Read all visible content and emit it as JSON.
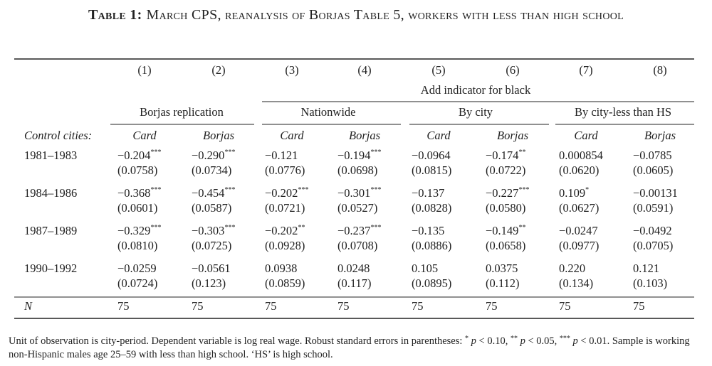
{
  "title": {
    "label": "Table 1:",
    "text": "March CPS, reanalysis of Borjas Table 5, workers with less than high school"
  },
  "table": {
    "column_numbers": [
      "(1)",
      "(2)",
      "(3)",
      "(4)",
      "(5)",
      "(6)",
      "(7)",
      "(8)"
    ],
    "spanner": "Add indicator for black",
    "groups": [
      "Borjas replication",
      "Nationwide",
      "By city",
      "By city-less than HS"
    ],
    "row_label_header": "Control cities:",
    "subheaders": [
      "Card",
      "Borjas",
      "Card",
      "Borjas",
      "Card",
      "Borjas",
      "Card",
      "Borjas"
    ],
    "rows": [
      {
        "label": "1981–1983",
        "cells": [
          {
            "coef": "−0.204",
            "stars": "***"
          },
          {
            "coef": "−0.290",
            "stars": "***"
          },
          {
            "coef": "−0.121"
          },
          {
            "coef": "−0.194",
            "stars": "***"
          },
          {
            "coef": "−0.0964"
          },
          {
            "coef": "−0.174",
            "stars": "**"
          },
          {
            "coef": "0.000854"
          },
          {
            "coef": "−0.0785"
          }
        ],
        "ses": [
          "(0.0758)",
          "(0.0734)",
          "(0.0776)",
          "(0.0698)",
          "(0.0815)",
          "(0.0722)",
          "(0.0620)",
          "(0.0605)"
        ]
      },
      {
        "label": "1984–1986",
        "cells": [
          {
            "coef": "−0.368",
            "stars": "***"
          },
          {
            "coef": "−0.454",
            "stars": "***"
          },
          {
            "coef": "−0.202",
            "stars": "***"
          },
          {
            "coef": "−0.301",
            "stars": "***"
          },
          {
            "coef": "−0.137"
          },
          {
            "coef": "−0.227",
            "stars": "***"
          },
          {
            "coef": "0.109",
            "stars": "*"
          },
          {
            "coef": "−0.00131"
          }
        ],
        "ses": [
          "(0.0601)",
          "(0.0587)",
          "(0.0721)",
          "(0.0527)",
          "(0.0828)",
          "(0.0580)",
          "(0.0627)",
          "(0.0591)"
        ]
      },
      {
        "label": "1987–1989",
        "cells": [
          {
            "coef": "−0.329",
            "stars": "***"
          },
          {
            "coef": "−0.303",
            "stars": "***"
          },
          {
            "coef": "−0.202",
            "stars": "**"
          },
          {
            "coef": "−0.237",
            "stars": "***"
          },
          {
            "coef": "−0.135"
          },
          {
            "coef": "−0.149",
            "stars": "**"
          },
          {
            "coef": "−0.0247"
          },
          {
            "coef": "−0.0492"
          }
        ],
        "ses": [
          "(0.0810)",
          "(0.0725)",
          "(0.0928)",
          "(0.0708)",
          "(0.0886)",
          "(0.0658)",
          "(0.0977)",
          "(0.0705)"
        ]
      },
      {
        "label": "1990–1992",
        "cells": [
          {
            "coef": "−0.0259"
          },
          {
            "coef": "−0.0561"
          },
          {
            "coef": "0.0938"
          },
          {
            "coef": "0.0248"
          },
          {
            "coef": "0.105"
          },
          {
            "coef": "0.0375"
          },
          {
            "coef": "0.220"
          },
          {
            "coef": "0.121"
          }
        ],
        "ses": [
          "(0.0724)",
          "(0.123)",
          "(0.0859)",
          "(0.117)",
          "(0.0895)",
          "(0.112)",
          "(0.134)",
          "(0.103)"
        ]
      }
    ],
    "n_label": "N",
    "n_values": [
      "75",
      "75",
      "75",
      "75",
      "75",
      "75",
      "75",
      "75"
    ]
  },
  "note": [
    {
      "text": "Unit of observation is city-period. Dependent variable is log real wage. Robust standard errors in parentheses: ",
      "style": "plain"
    },
    {
      "text": "*",
      "style": "sup"
    },
    {
      "text": " p",
      "style": "italic"
    },
    {
      "text": " < 0.10, ",
      "style": "plain"
    },
    {
      "text": "**",
      "style": "sup"
    },
    {
      "text": " p",
      "style": "italic"
    },
    {
      "text": " < 0.05, ",
      "style": "plain"
    },
    {
      "text": "***",
      "style": "sup"
    },
    {
      "text": " p",
      "style": "italic"
    },
    {
      "text": " < 0.01. Sample is working non-Hispanic males age 25–59 with less than high school. ‘HS’ is high school.",
      "style": "plain"
    }
  ]
}
